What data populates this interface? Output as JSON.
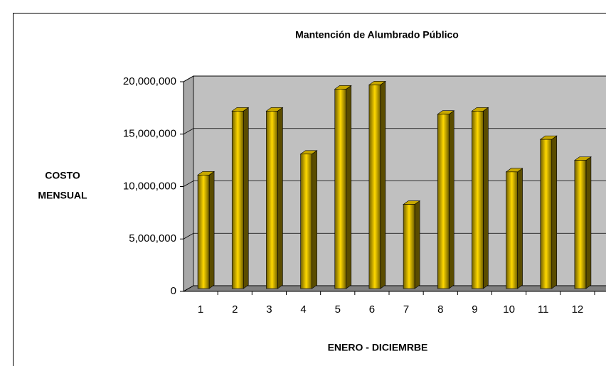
{
  "chart_data": {
    "type": "bar3d",
    "title": "Mantención de Alumbrado Público",
    "xlabel": "ENERO - DICIEMRBE",
    "ylabel": [
      "COSTO",
      "MENSUAL"
    ],
    "categories": [
      "1",
      "2",
      "3",
      "4",
      "5",
      "6",
      "7",
      "8",
      "9",
      "10",
      "11",
      "12"
    ],
    "values": [
      11100000,
      17200000,
      17200000,
      13100000,
      19300000,
      19700000,
      8300000,
      16900000,
      17200000,
      11400000,
      14500000,
      12500000
    ],
    "color": "#d4b000",
    "ylim": [
      0,
      20000000
    ],
    "yticks": [
      0,
      {
        "value": 5000000,
        "label": "5,000,000"
      },
      {
        "value": 10000000,
        "label": "10,000,000"
      },
      {
        "value": 15000000,
        "label": "15,000,000"
      },
      {
        "value": 20000000,
        "label": "20,000,000"
      }
    ],
    "grid": true
  }
}
